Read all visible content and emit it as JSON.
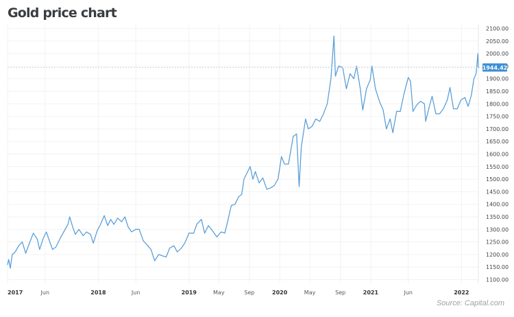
{
  "header": {
    "title": "Gold price chart"
  },
  "footer": {
    "source": "Source: Capital.com"
  },
  "chart_data": {
    "type": "line",
    "title": "Gold price chart",
    "xlabel": "",
    "ylabel": "",
    "ylim": [
      1085,
      2115
    ],
    "xlim": [
      "2017-01-01",
      "2022-03-10"
    ],
    "grid": true,
    "colors": {
      "line": "#5b9fd8",
      "label_bg": "#3b8fd4",
      "label_text": "#ffffff",
      "grid": "#f2f2f2",
      "ref_line": "#c8d4de"
    },
    "y_ticks": [
      "1100.00",
      "1150.00",
      "1200.00",
      "1250.00",
      "1300.00",
      "1350.00",
      "1400.00",
      "1450.00",
      "1500.00",
      "1550.00",
      "1600.00",
      "1650.00",
      "1700.00",
      "1750.00",
      "1800.00",
      "1850.00",
      "1900.00",
      "1950.00",
      "2000.00",
      "2050.00",
      "2100.00"
    ],
    "x_ticks": [
      {
        "label": "2017",
        "date": "2017-01-01",
        "bold": true
      },
      {
        "label": "Jun",
        "date": "2017-06-01",
        "bold": false
      },
      {
        "label": "2018",
        "date": "2018-01-01",
        "bold": true
      },
      {
        "label": "Jun",
        "date": "2018-06-01",
        "bold": false
      },
      {
        "label": "2019",
        "date": "2019-01-01",
        "bold": true
      },
      {
        "label": "May",
        "date": "2019-05-01",
        "bold": false
      },
      {
        "label": "Sep",
        "date": "2019-09-01",
        "bold": false
      },
      {
        "label": "2020",
        "date": "2020-01-01",
        "bold": true
      },
      {
        "label": "May",
        "date": "2020-05-01",
        "bold": false
      },
      {
        "label": "Sep",
        "date": "2020-09-01",
        "bold": false
      },
      {
        "label": "2021",
        "date": "2021-01-01",
        "bold": true
      },
      {
        "label": "Jun",
        "date": "2021-06-01",
        "bold": false
      },
      {
        "label": "2022",
        "date": "2022-01-01",
        "bold": true
      }
    ],
    "current_value": {
      "label": "1944.42",
      "value": 1944.42
    },
    "series": [
      {
        "points": [
          [
            "2017-01-01",
            1160
          ],
          [
            "2017-01-06",
            1180
          ],
          [
            "2017-01-12",
            1145
          ],
          [
            "2017-01-20",
            1200
          ],
          [
            "2017-02-01",
            1210
          ],
          [
            "2017-02-15",
            1235
          ],
          [
            "2017-03-01",
            1250
          ],
          [
            "2017-03-15",
            1205
          ],
          [
            "2017-04-01",
            1250
          ],
          [
            "2017-04-15",
            1285
          ],
          [
            "2017-05-01",
            1260
          ],
          [
            "2017-05-10",
            1220
          ],
          [
            "2017-05-25",
            1265
          ],
          [
            "2017-06-06",
            1290
          ],
          [
            "2017-06-20",
            1250
          ],
          [
            "2017-07-01",
            1220
          ],
          [
            "2017-07-15",
            1230
          ],
          [
            "2017-08-01",
            1265
          ],
          [
            "2017-08-15",
            1290
          ],
          [
            "2017-09-01",
            1320
          ],
          [
            "2017-09-08",
            1350
          ],
          [
            "2017-09-20",
            1310
          ],
          [
            "2017-10-01",
            1280
          ],
          [
            "2017-10-15",
            1300
          ],
          [
            "2017-11-01",
            1275
          ],
          [
            "2017-11-15",
            1290
          ],
          [
            "2017-12-01",
            1280
          ],
          [
            "2017-12-12",
            1245
          ],
          [
            "2017-12-28",
            1295
          ],
          [
            "2018-01-10",
            1320
          ],
          [
            "2018-01-25",
            1355
          ],
          [
            "2018-02-08",
            1315
          ],
          [
            "2018-02-20",
            1340
          ],
          [
            "2018-03-05",
            1320
          ],
          [
            "2018-03-20",
            1345
          ],
          [
            "2018-04-05",
            1330
          ],
          [
            "2018-04-18",
            1350
          ],
          [
            "2018-05-01",
            1310
          ],
          [
            "2018-05-15",
            1290
          ],
          [
            "2018-06-01",
            1300
          ],
          [
            "2018-06-15",
            1300
          ],
          [
            "2018-07-01",
            1255
          ],
          [
            "2018-07-15",
            1240
          ],
          [
            "2018-08-01",
            1220
          ],
          [
            "2018-08-16",
            1175
          ],
          [
            "2018-09-01",
            1200
          ],
          [
            "2018-09-15",
            1195
          ],
          [
            "2018-10-01",
            1190
          ],
          [
            "2018-10-15",
            1225
          ],
          [
            "2018-11-01",
            1235
          ],
          [
            "2018-11-15",
            1210
          ],
          [
            "2018-12-01",
            1225
          ],
          [
            "2018-12-15",
            1245
          ],
          [
            "2019-01-01",
            1285
          ],
          [
            "2019-01-20",
            1285
          ],
          [
            "2019-02-01",
            1320
          ],
          [
            "2019-02-20",
            1340
          ],
          [
            "2019-03-05",
            1285
          ],
          [
            "2019-03-20",
            1315
          ],
          [
            "2019-04-05",
            1295
          ],
          [
            "2019-04-23",
            1270
          ],
          [
            "2019-05-10",
            1290
          ],
          [
            "2019-05-25",
            1285
          ],
          [
            "2019-06-05",
            1330
          ],
          [
            "2019-06-20",
            1395
          ],
          [
            "2019-07-05",
            1400
          ],
          [
            "2019-07-20",
            1430
          ],
          [
            "2019-08-01",
            1440
          ],
          [
            "2019-08-10",
            1500
          ],
          [
            "2019-08-25",
            1530
          ],
          [
            "2019-09-04",
            1550
          ],
          [
            "2019-09-15",
            1500
          ],
          [
            "2019-09-25",
            1530
          ],
          [
            "2019-10-10",
            1485
          ],
          [
            "2019-10-25",
            1505
          ],
          [
            "2019-11-10",
            1460
          ],
          [
            "2019-11-25",
            1465
          ],
          [
            "2019-12-10",
            1475
          ],
          [
            "2019-12-25",
            1500
          ],
          [
            "2020-01-08",
            1590
          ],
          [
            "2020-01-20",
            1560
          ],
          [
            "2020-02-05",
            1560
          ],
          [
            "2020-02-24",
            1670
          ],
          [
            "2020-03-09",
            1680
          ],
          [
            "2020-03-19",
            1470
          ],
          [
            "2020-03-28",
            1630
          ],
          [
            "2020-04-14",
            1740
          ],
          [
            "2020-04-25",
            1700
          ],
          [
            "2020-05-10",
            1710
          ],
          [
            "2020-05-25",
            1740
          ],
          [
            "2020-06-10",
            1730
          ],
          [
            "2020-06-25",
            1760
          ],
          [
            "2020-07-10",
            1800
          ],
          [
            "2020-07-25",
            1900
          ],
          [
            "2020-08-06",
            2070
          ],
          [
            "2020-08-12",
            1910
          ],
          [
            "2020-08-25",
            1950
          ],
          [
            "2020-09-10",
            1945
          ],
          [
            "2020-09-25",
            1860
          ],
          [
            "2020-10-10",
            1920
          ],
          [
            "2020-10-25",
            1900
          ],
          [
            "2020-11-05",
            1950
          ],
          [
            "2020-11-20",
            1860
          ],
          [
            "2020-11-30",
            1775
          ],
          [
            "2020-12-15",
            1860
          ],
          [
            "2020-12-30",
            1895
          ],
          [
            "2021-01-06",
            1950
          ],
          [
            "2021-01-20",
            1860
          ],
          [
            "2021-02-05",
            1810
          ],
          [
            "2021-02-20",
            1775
          ],
          [
            "2021-03-05",
            1700
          ],
          [
            "2021-03-20",
            1740
          ],
          [
            "2021-03-31",
            1685
          ],
          [
            "2021-04-15",
            1770
          ],
          [
            "2021-04-30",
            1770
          ],
          [
            "2021-05-15",
            1840
          ],
          [
            "2021-06-01",
            1905
          ],
          [
            "2021-06-10",
            1890
          ],
          [
            "2021-06-20",
            1770
          ],
          [
            "2021-07-05",
            1795
          ],
          [
            "2021-07-20",
            1810
          ],
          [
            "2021-08-05",
            1800
          ],
          [
            "2021-08-10",
            1730
          ],
          [
            "2021-08-25",
            1790
          ],
          [
            "2021-09-05",
            1830
          ],
          [
            "2021-09-20",
            1760
          ],
          [
            "2021-10-05",
            1760
          ],
          [
            "2021-10-20",
            1780
          ],
          [
            "2021-11-05",
            1815
          ],
          [
            "2021-11-16",
            1865
          ],
          [
            "2021-11-30",
            1780
          ],
          [
            "2021-12-15",
            1780
          ],
          [
            "2021-12-30",
            1815
          ],
          [
            "2022-01-15",
            1825
          ],
          [
            "2022-01-28",
            1790
          ],
          [
            "2022-02-10",
            1835
          ],
          [
            "2022-02-20",
            1900
          ],
          [
            "2022-03-01",
            1920
          ],
          [
            "2022-03-08",
            2000
          ],
          [
            "2022-03-10",
            1944.42
          ]
        ]
      }
    ]
  }
}
